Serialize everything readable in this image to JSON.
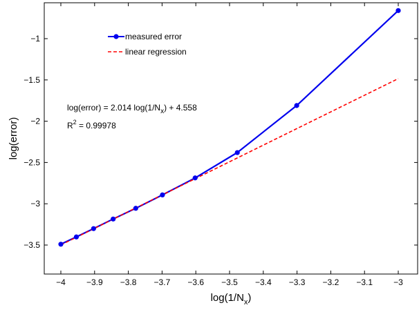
{
  "chart_data": {
    "type": "line",
    "xlabel": "log(1/N",
    "xlabel_sub": "x",
    "xlabel_close": ")",
    "ylabel": "log(error)",
    "xlim": [
      -4.05,
      -2.98
    ],
    "ylim": [
      -3.85,
      -0.62
    ],
    "xticks": [
      -4,
      -3.9,
      -3.8,
      -3.7,
      -3.6,
      -3.5,
      -3.4,
      -3.3,
      -3.2,
      -3.1,
      -3
    ],
    "xtick_labels": [
      "−4",
      "−3.9",
      "−3.8",
      "−3.7",
      "−3.6",
      "−3.5",
      "−3.4",
      "−3.3",
      "−3.2",
      "−3.1",
      "−3"
    ],
    "yticks": [
      -3.5,
      -3,
      -2.5,
      -2,
      -1.5,
      -1
    ],
    "ytick_labels": [
      "−3.5",
      "−3",
      "−2.5",
      "−2",
      "−1.5",
      "−1"
    ],
    "grid": false,
    "legend_position": "top-left",
    "series": [
      {
        "name": "measured error",
        "color": "#0000ee",
        "style": "solid",
        "marker": "circle",
        "x": [
          -4.0,
          -3.954,
          -3.903,
          -3.845,
          -3.778,
          -3.699,
          -3.602,
          -3.477,
          -3.301,
          -3.0
        ],
        "y": [
          -3.49,
          -3.402,
          -3.301,
          -3.185,
          -3.055,
          -2.893,
          -2.687,
          -2.38,
          -1.81,
          -0.66
        ]
      },
      {
        "name": "linear regression",
        "color": "#ff0000",
        "style": "dashed",
        "marker": "none",
        "x": [
          -4.0,
          -3.0
        ],
        "y": [
          -3.498,
          -1.484
        ]
      }
    ],
    "annotations": {
      "eq_prefix": "log(error) = 2.014 log(1/N",
      "eq_sub": "x",
      "eq_suffix": ") + 4.558",
      "r2_prefix": "R",
      "r2_sup": "2",
      "r2_suffix": " = 0.99978"
    }
  }
}
